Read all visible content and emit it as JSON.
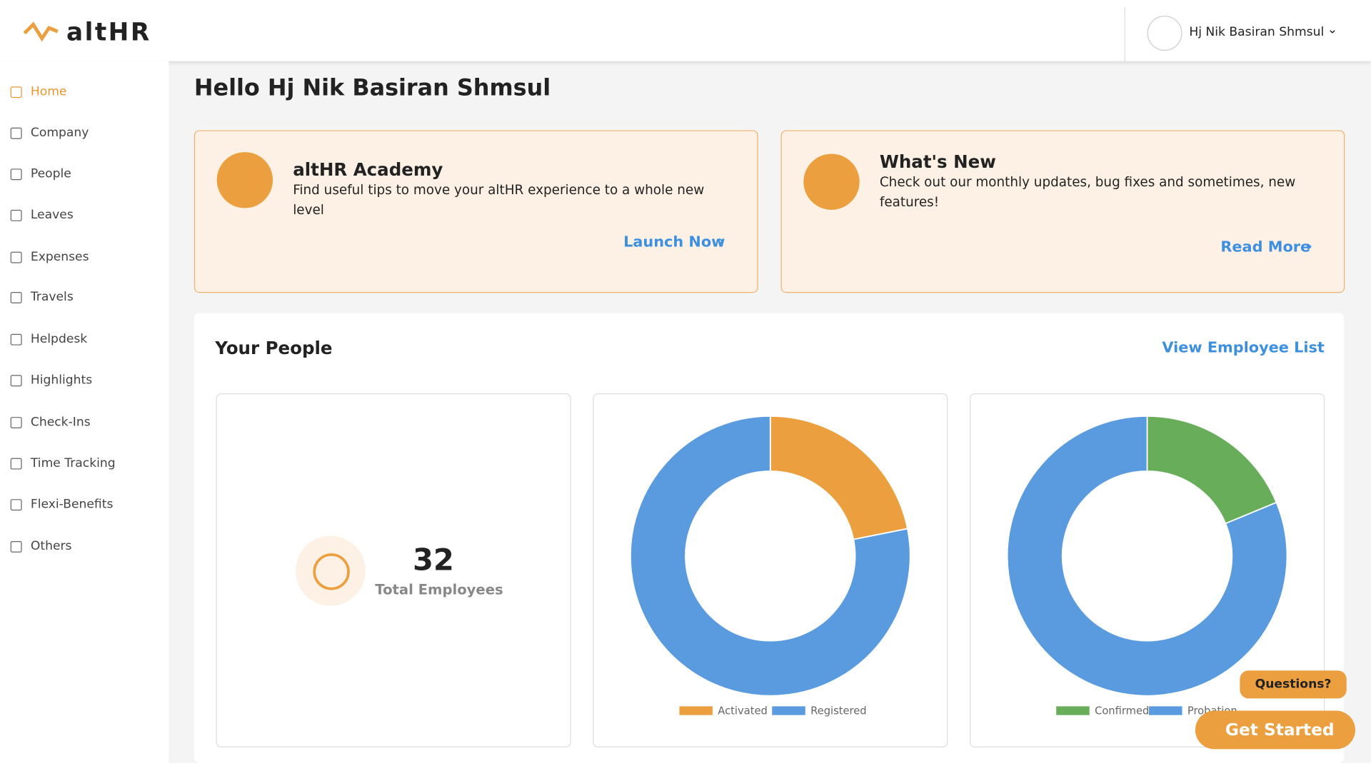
{
  "header": {
    "logo": "altHR",
    "user": "Hj Nik Basiran Shmsul"
  },
  "sidebar": {
    "items": [
      "Home",
      "Company",
      "People",
      "Leaves",
      "Expenses",
      "Travels",
      "Helpdesk",
      "Highlights",
      "Check-Ins",
      "Time Tracking",
      "Flexi-Benefits",
      "Others"
    ]
  },
  "greeting": "Hello Hj Nik Basiran Shmsul",
  "cards": [
    {
      "title": "altHR Academy",
      "text": "Find useful tips to move your altHR experience to a whole new level",
      "link": "Launch Now"
    },
    {
      "title": "What's New",
      "text": "Check out our monthly updates, bug fixes and sometimes, new features!",
      "link": "Read More"
    }
  ],
  "people": {
    "title": "Your People",
    "link": "View Employee List",
    "total": {
      "value": 32,
      "label": "Total Employees"
    },
    "charts": [
      {
        "type": "donut",
        "categories": [
          "Activated",
          "Registered"
        ],
        "values": [
          7,
          25
        ],
        "colors": [
          "#eb9f3f",
          "#5a9be0"
        ]
      },
      {
        "type": "donut",
        "categories": [
          "Confirmed",
          "Probation"
        ],
        "values": [
          6,
          26
        ],
        "colors": [
          "#68ad5a",
          "#5a9be0"
        ]
      }
    ]
  },
  "help": {
    "questions": "Questions?",
    "cta": "Get Started"
  }
}
